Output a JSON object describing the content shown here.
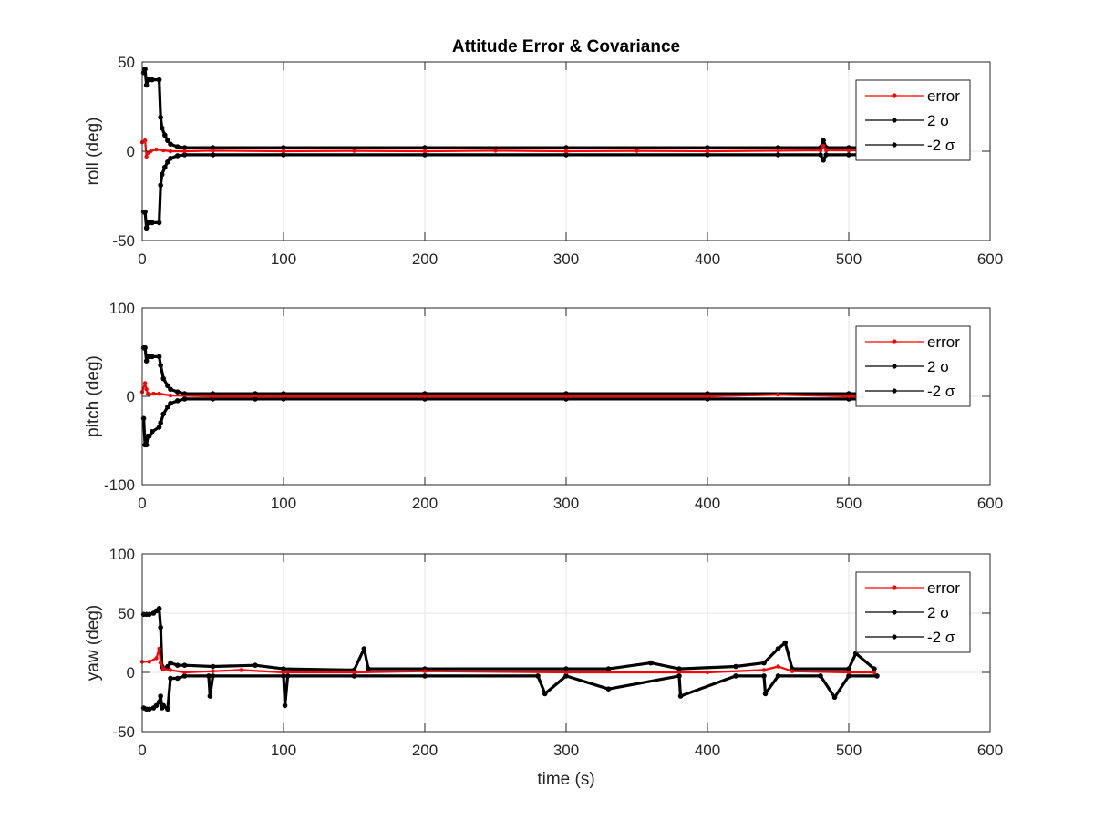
{
  "chart_data": [
    {
      "type": "line",
      "title": "Attitude Error & Covariance",
      "xlabel": "",
      "ylabel": "roll (deg)",
      "xlim": [
        0,
        600
      ],
      "ylim": [
        -50,
        50
      ],
      "xticks": [
        0,
        100,
        200,
        300,
        400,
        500,
        600
      ],
      "yticks": [
        -50,
        0,
        50
      ],
      "grid": true,
      "legend_position": "top-right",
      "legend": [
        "error",
        "2 σ",
        "-2 σ"
      ],
      "series": [
        {
          "name": "error",
          "color": "#ff0000",
          "x": [
            0,
            2,
            3,
            4,
            6,
            10,
            15,
            20,
            30,
            50,
            100,
            150,
            200,
            250,
            300,
            350,
            400,
            450,
            480,
            482,
            484,
            500,
            518
          ],
          "y": [
            5,
            6,
            -3,
            -1,
            0,
            1,
            0.5,
            0,
            0,
            0.3,
            0,
            0.2,
            0,
            0.3,
            0,
            0.2,
            0,
            0.3,
            0.5,
            3,
            0.5,
            0.5,
            0.5
          ]
        },
        {
          "name": "2 σ",
          "color": "#000000",
          "x": [
            1,
            2,
            3,
            4,
            5,
            7,
            12,
            13,
            14,
            16,
            18,
            20,
            25,
            30,
            50,
            100,
            200,
            300,
            400,
            450,
            480,
            482,
            484,
            500,
            518
          ],
          "y": [
            44,
            46,
            37,
            40,
            40,
            40,
            40,
            19,
            13,
            9,
            6,
            4,
            2.5,
            2,
            2,
            2,
            2,
            2,
            2,
            2,
            2,
            6,
            2,
            2,
            2
          ]
        },
        {
          "name": "-2 σ",
          "color": "#000000",
          "x": [
            1,
            2,
            3,
            4,
            5,
            7,
            12,
            13,
            14,
            16,
            18,
            20,
            25,
            30,
            50,
            100,
            200,
            300,
            400,
            450,
            480,
            482,
            484,
            500,
            518
          ],
          "y": [
            -34,
            -34,
            -43,
            -40,
            -40,
            -40,
            -40,
            -19,
            -13,
            -9,
            -6,
            -4,
            -2.5,
            -2,
            -2,
            -2,
            -2,
            -2,
            -2,
            -2,
            -2,
            -5,
            -2,
            -2,
            -2
          ]
        }
      ]
    },
    {
      "type": "line",
      "title": "",
      "xlabel": "",
      "ylabel": "pitch (deg)",
      "xlim": [
        0,
        600
      ],
      "ylim": [
        -100,
        100
      ],
      "xticks": [
        0,
        100,
        200,
        300,
        400,
        500,
        600
      ],
      "yticks": [
        -100,
        0,
        100
      ],
      "grid": true,
      "legend_position": "top-right",
      "legend": [
        "error",
        "2 σ",
        "-2 σ"
      ],
      "series": [
        {
          "name": "error",
          "color": "#ff0000",
          "x": [
            0,
            2,
            3,
            4,
            5,
            8,
            12,
            20,
            50,
            100,
            200,
            300,
            400,
            450,
            500,
            518
          ],
          "y": [
            5,
            15,
            8,
            3,
            2,
            3,
            3,
            1,
            0,
            0,
            0,
            0,
            0,
            2,
            0,
            0
          ]
        },
        {
          "name": "2 σ",
          "color": "#000000",
          "x": [
            1,
            2,
            3,
            4,
            5,
            7,
            12,
            13,
            15,
            18,
            20,
            25,
            30,
            50,
            80,
            100,
            200,
            300,
            400,
            500,
            518
          ],
          "y": [
            55,
            55,
            40,
            45,
            45,
            45,
            45,
            35,
            20,
            12,
            8,
            5,
            3,
            3,
            3,
            3,
            3,
            3,
            3,
            3,
            3
          ]
        },
        {
          "name": "-2 σ",
          "color": "#000000",
          "x": [
            1,
            2,
            3,
            4,
            5,
            7,
            12,
            13,
            15,
            18,
            20,
            25,
            30,
            50,
            80,
            100,
            200,
            300,
            400,
            500,
            518
          ],
          "y": [
            -25,
            -55,
            -55,
            -45,
            -45,
            -40,
            -35,
            -30,
            -20,
            -12,
            -8,
            -5,
            -3,
            -3,
            -3,
            -3,
            -3,
            -3,
            -3,
            -3,
            -3
          ]
        }
      ]
    },
    {
      "type": "line",
      "title": "",
      "xlabel": "time (s)",
      "ylabel": "yaw (deg)",
      "xlim": [
        0,
        600
      ],
      "ylim": [
        -50,
        100
      ],
      "xticks": [
        0,
        100,
        200,
        300,
        400,
        500,
        600
      ],
      "yticks": [
        -50,
        0,
        50,
        100
      ],
      "grid": true,
      "legend_position": "top-right",
      "legend": [
        "error",
        "2 σ",
        "-2 σ"
      ],
      "series": [
        {
          "name": "error",
          "color": "#ff0000",
          "x": [
            0,
            5,
            10,
            12,
            13,
            15,
            20,
            30,
            50,
            70,
            100,
            150,
            200,
            300,
            400,
            440,
            450,
            460,
            500,
            518
          ],
          "y": [
            9,
            9,
            12,
            20,
            8,
            3,
            2,
            0,
            1,
            2,
            0,
            0,
            1,
            0,
            0,
            2,
            5,
            1,
            0,
            0
          ]
        },
        {
          "name": "2 σ",
          "color": "#000000",
          "x": [
            1,
            3,
            5,
            8,
            10,
            12,
            13,
            14,
            15,
            18,
            20,
            25,
            30,
            50,
            80,
            100,
            150,
            157,
            160,
            200,
            300,
            330,
            360,
            380,
            420,
            440,
            450,
            455,
            460,
            500,
            505,
            518
          ],
          "y": [
            49,
            49,
            49,
            50,
            52,
            54,
            38,
            5,
            3,
            5,
            8,
            6,
            6,
            5,
            6,
            3,
            2,
            20,
            3,
            3,
            3,
            3,
            8,
            3,
            5,
            8,
            20,
            25,
            3,
            3,
            16,
            3
          ]
        },
        {
          "name": "-2 σ",
          "color": "#000000",
          "x": [
            1,
            3,
            5,
            8,
            10,
            12,
            13,
            14,
            15,
            18,
            20,
            25,
            30,
            47,
            48,
            50,
            100,
            101,
            103,
            150,
            200,
            280,
            285,
            300,
            330,
            380,
            381,
            420,
            440,
            441,
            450,
            480,
            490,
            500,
            520
          ],
          "y": [
            -30,
            -31,
            -31,
            -30,
            -28,
            -25,
            -20,
            -30,
            -28,
            -31,
            -5,
            -5,
            -3,
            -3,
            -20,
            -3,
            -3,
            -28,
            -3,
            -3,
            -3,
            -3,
            -18,
            -3,
            -14,
            -3,
            -20,
            -3,
            -3,
            -18,
            -3,
            -3,
            -21,
            -3,
            -3
          ]
        }
      ]
    }
  ]
}
